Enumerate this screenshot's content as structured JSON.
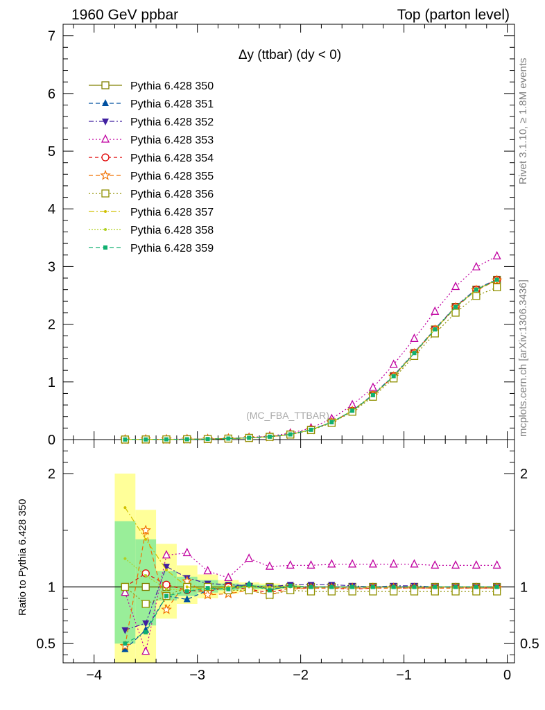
{
  "header": {
    "left": "1960 GeV ppbar",
    "right": "Top (parton level)"
  },
  "side": {
    "rivet": "Rivet 3.1.10, ≥ 1.8M events",
    "mcplots": "mcplots.cern.ch [arXiv:1306.3436]"
  },
  "chart_data": {
    "type": "line",
    "title": "Δy (ttbar) (dy < 0)",
    "watermark": "(MC_FBA_TTBAR)",
    "xlim": [
      -4.3,
      0.07
    ],
    "ylim": [
      0,
      7.2
    ],
    "ratio_ylim": [
      0.33,
      2.3
    ],
    "ratio_ylabel": "Ratio to Pythia 6.428 350",
    "xticks": [
      "−4",
      "−3",
      "−2",
      "−1",
      "0"
    ],
    "yticks": [
      "0",
      "1",
      "2",
      "3",
      "4",
      "5",
      "6",
      "7"
    ],
    "ratio_yticks": [
      "0.5",
      "1",
      "2"
    ],
    "legend_position": "top-left",
    "x": [
      -3.7,
      -3.5,
      -3.3,
      -3.1,
      -2.9,
      -2.7,
      -2.5,
      -2.3,
      -2.1,
      -1.9,
      -1.7,
      -1.5,
      -1.3,
      -1.1,
      -0.9,
      -0.7,
      -0.5,
      -0.3,
      -0.1
    ],
    "series": [
      {
        "name": "Pythia 6.428 350",
        "color": "#808000",
        "dash": "",
        "marker": "square-open",
        "values": [
          0.001,
          0.002,
          0.004,
          0.006,
          0.01,
          0.018,
          0.03,
          0.05,
          0.09,
          0.17,
          0.3,
          0.5,
          0.77,
          1.1,
          1.5,
          1.91,
          2.3,
          2.6,
          2.77
        ]
      },
      {
        "name": "Pythia 6.428 351",
        "color": "#0050a0",
        "dash": "6,4",
        "marker": "triangle-up",
        "values": [
          0.001,
          0.002,
          0.004,
          0.006,
          0.01,
          0.018,
          0.03,
          0.05,
          0.09,
          0.17,
          0.3,
          0.5,
          0.77,
          1.1,
          1.5,
          1.91,
          2.3,
          2.6,
          2.77
        ]
      },
      {
        "name": "Pythia 6.428 352",
        "color": "#4020a0",
        "dash": "7,3,2,3",
        "marker": "triangle-down",
        "values": [
          0.001,
          0.002,
          0.004,
          0.006,
          0.01,
          0.018,
          0.03,
          0.05,
          0.09,
          0.17,
          0.3,
          0.5,
          0.78,
          1.11,
          1.51,
          1.92,
          2.31,
          2.61,
          2.78
        ]
      },
      {
        "name": "Pythia 6.428 353",
        "color": "#c000a0",
        "dash": "2,3",
        "marker": "triangle-open",
        "values": [
          0.001,
          0.002,
          0.005,
          0.008,
          0.012,
          0.02,
          0.036,
          0.06,
          0.11,
          0.2,
          0.36,
          0.6,
          0.9,
          1.3,
          1.75,
          2.22,
          2.65,
          2.99,
          3.18
        ]
      },
      {
        "name": "Pythia 6.428 354",
        "color": "#e00000",
        "dash": "5,4",
        "marker": "circle-open",
        "values": [
          0.001,
          0.002,
          0.004,
          0.006,
          0.01,
          0.018,
          0.03,
          0.05,
          0.09,
          0.17,
          0.3,
          0.5,
          0.77,
          1.1,
          1.5,
          1.91,
          2.3,
          2.6,
          2.77
        ]
      },
      {
        "name": "Pythia 6.428 355",
        "color": "#f07000",
        "dash": "6,4",
        "marker": "star-open",
        "values": [
          0.001,
          0.003,
          0.003,
          0.006,
          0.009,
          0.017,
          0.029,
          0.047,
          0.088,
          0.168,
          0.297,
          0.495,
          0.765,
          1.09,
          1.49,
          1.9,
          2.29,
          2.59,
          2.76
        ]
      },
      {
        "name": "Pythia 6.428 356",
        "color": "#909000",
        "dash": "2,3",
        "marker": "square-open",
        "values": [
          0.001,
          0.002,
          0.004,
          0.006,
          0.01,
          0.017,
          0.029,
          0.047,
          0.087,
          0.164,
          0.289,
          0.482,
          0.742,
          1.06,
          1.45,
          1.84,
          2.2,
          2.49,
          2.64
        ]
      },
      {
        "name": "Pythia 6.428 357",
        "color": "#d0c000",
        "dash": "8,3,2,3",
        "marker": "dot",
        "values": [
          0.001,
          0.002,
          0.004,
          0.006,
          0.01,
          0.018,
          0.03,
          0.05,
          0.09,
          0.17,
          0.3,
          0.5,
          0.77,
          1.1,
          1.5,
          1.91,
          2.3,
          2.6,
          2.77
        ]
      },
      {
        "name": "Pythia 6.428 358",
        "color": "#b0d020",
        "dash": "2,2",
        "marker": "dot",
        "values": [
          0.001,
          0.002,
          0.004,
          0.006,
          0.01,
          0.018,
          0.03,
          0.05,
          0.09,
          0.17,
          0.3,
          0.5,
          0.77,
          1.1,
          1.5,
          1.91,
          2.3,
          2.6,
          2.77
        ]
      },
      {
        "name": "Pythia 6.428 359",
        "color": "#10b070",
        "dash": "6,4",
        "marker": "square-filled",
        "values": [
          0.001,
          0.002,
          0.004,
          0.006,
          0.01,
          0.018,
          0.03,
          0.05,
          0.09,
          0.17,
          0.3,
          0.5,
          0.77,
          1.1,
          1.5,
          1.91,
          2.3,
          2.6,
          2.77
        ]
      }
    ],
    "ratio_series": [
      {
        "name": "Pythia 6.428 350",
        "values": [
          1,
          1,
          1,
          1,
          1,
          1,
          1,
          1,
          1,
          1,
          1,
          1,
          1,
          1,
          1,
          1,
          1,
          1,
          1
        ]
      },
      {
        "name": "Pythia 6.428 351",
        "values": [
          0.45,
          0.62,
          0.92,
          0.89,
          0.97,
          1.0,
          1.02,
          0.98,
          1.0,
          1.0,
          1.0,
          1.0,
          1.0,
          1.0,
          1.0,
          1.0,
          1.0,
          1.0,
          1.0
        ]
      },
      {
        "name": "Pythia 6.428 352",
        "values": [
          0.62,
          0.68,
          1.18,
          1.08,
          1.03,
          1.02,
          1.01,
          1.0,
          1.02,
          1.02,
          1.02,
          1.01,
          1.0,
          1.01,
          1.01,
          1.0,
          1.0,
          1.0,
          1.0
        ]
      },
      {
        "name": "Pythia 6.428 353",
        "values": [
          0.95,
          0.43,
          1.28,
          1.3,
          1.14,
          1.08,
          1.25,
          1.18,
          1.19,
          1.19,
          1.2,
          1.2,
          1.2,
          1.2,
          1.2,
          1.19,
          1.19,
          1.19,
          1.19
        ]
      },
      {
        "name": "Pythia 6.428 354",
        "values": [
          1.0,
          1.12,
          1.02,
          0.97,
          0.96,
          1.0,
          0.98,
          0.95,
          0.99,
          0.99,
          0.99,
          0.98,
          0.99,
          0.99,
          0.99,
          0.99,
          0.99,
          0.99,
          0.99
        ]
      },
      {
        "name": "Pythia 6.428 355",
        "values": [
          0.48,
          1.5,
          0.8,
          1.05,
          0.93,
          0.94,
          0.97,
          0.93,
          0.98,
          0.99,
          0.99,
          0.99,
          0.99,
          0.99,
          0.99,
          0.99,
          0.99,
          0.99,
          0.99
        ]
      },
      {
        "name": "Pythia 6.428 356",
        "values": [
          1.0,
          0.85,
          0.92,
          1.0,
          1.0,
          0.97,
          0.97,
          0.93,
          0.97,
          0.96,
          0.96,
          0.96,
          0.96,
          0.96,
          0.96,
          0.96,
          0.96,
          0.96,
          0.96
        ]
      },
      {
        "name": "Pythia 6.428 357",
        "values": [
          1.7,
          1.42,
          1.15,
          1.0,
          0.98,
          1.0,
          1.01,
          1.0,
          1.0,
          1.0,
          1.0,
          1.0,
          1.0,
          1.0,
          1.0,
          1.0,
          1.0,
          1.0,
          1.0
        ]
      },
      {
        "name": "Pythia 6.428 358",
        "values": [
          1.25,
          1.1,
          0.98,
          0.97,
          0.99,
          0.99,
          1.0,
          0.99,
          1.0,
          1.0,
          1.0,
          1.0,
          1.0,
          1.0,
          1.0,
          1.0,
          1.0,
          1.0,
          1.0
        ]
      },
      {
        "name": "Pythia 6.428 359",
        "values": [
          0.5,
          0.6,
          0.92,
          0.96,
          0.99,
          0.98,
          1.02,
          0.97,
          1.01,
          1.0,
          1.0,
          1.0,
          1.0,
          1.0,
          1.0,
          1.0,
          1.0,
          1.0,
          1.0
        ]
      }
    ],
    "uncertainty_bands": {
      "x_edges": [
        -3.8,
        -3.6,
        -3.4,
        -3.2,
        -3.0,
        -2.8,
        -2.6,
        -2.4,
        -2.2,
        -2.0
      ],
      "green_low": [
        0.5,
        0.66,
        0.88,
        0.92,
        0.95,
        0.97,
        0.98,
        0.985,
        0.99
      ],
      "green_high": [
        1.58,
        1.42,
        1.14,
        1.09,
        1.06,
        1.03,
        1.02,
        1.015,
        1.01
      ],
      "yellow_low": [
        0.33,
        0.33,
        0.72,
        0.85,
        0.9,
        0.94,
        0.96,
        0.97,
        0.98
      ],
      "yellow_high": [
        2.0,
        1.68,
        1.38,
        1.19,
        1.11,
        1.06,
        1.04,
        1.03,
        1.02
      ]
    }
  }
}
